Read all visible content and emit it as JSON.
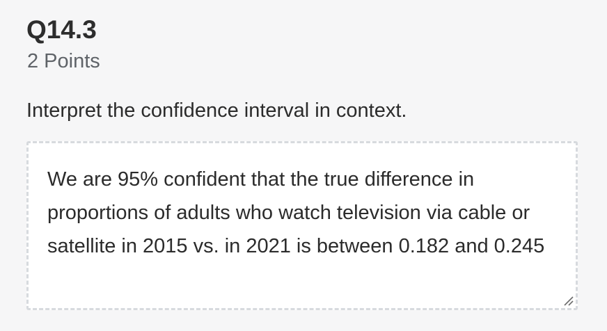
{
  "question": {
    "number": "Q14.3",
    "points": "2 Points",
    "prompt": "Interpret the confidence interval in context."
  },
  "answer": {
    "value": "We are 95% confident that the true difference in proportions of adults who watch television via cable or satellite in 2015 vs. in 2021 is between 0.182 and 0.245"
  },
  "icons": {
    "resize": "resize-handle-icon"
  },
  "colors": {
    "page_background": "#f6f6f7",
    "text": "#2b2b2b",
    "muted_text": "#5f6368",
    "answer_border": "#d7dade",
    "answer_background": "#ffffff"
  }
}
